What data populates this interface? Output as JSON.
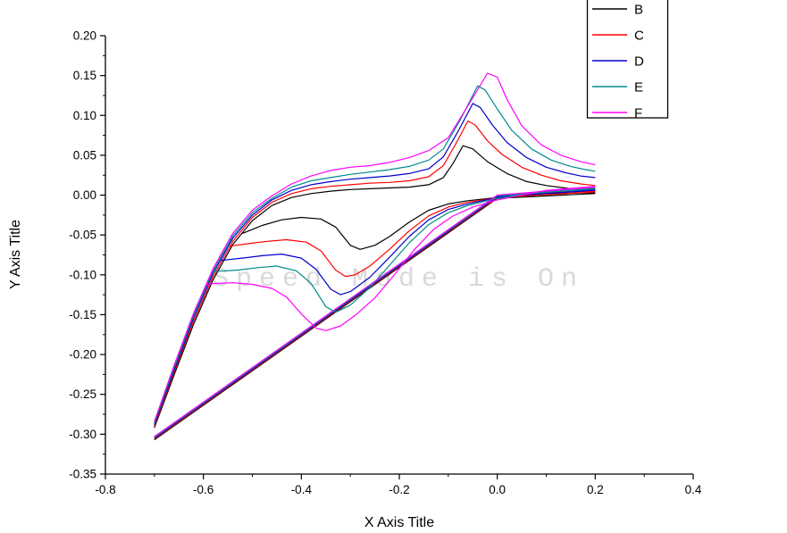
{
  "watermark": {
    "text": "Speed Mode is On",
    "color": "#d9d9d9"
  },
  "chart_data": {
    "type": "line",
    "title": "",
    "xlabel": "X Axis Title",
    "ylabel": "Y Axis Title",
    "xlim": [
      -0.8,
      0.4
    ],
    "ylim": [
      -0.35,
      0.2
    ],
    "x_ticks": [
      -0.8,
      -0.6,
      -0.4,
      -0.2,
      0.0,
      0.2,
      0.4
    ],
    "y_ticks": [
      0.2,
      0.15,
      0.1,
      0.05,
      0.0,
      -0.05,
      -0.1,
      -0.15,
      -0.2,
      -0.25,
      -0.3,
      -0.35
    ],
    "grid": false,
    "legend_position": "top-right",
    "series_note": "Cyclic-voltammetry-style loops: first_scan = straight diagonal sweep, anodic = upper branch with oxidation peak, cathodic = return branch with reduction trough",
    "series": [
      {
        "name": "B",
        "color": "#000000",
        "segments": {
          "first_scan": [
            [
              0.2,
              0.002
            ],
            [
              0.0,
              -0.004
            ],
            [
              -0.7,
              -0.307
            ]
          ],
          "anodic": [
            [
              -0.7,
              -0.292
            ],
            [
              -0.66,
              -0.226
            ],
            [
              -0.62,
              -0.162
            ],
            [
              -0.58,
              -0.106
            ],
            [
              -0.54,
              -0.062
            ],
            [
              -0.5,
              -0.032
            ],
            [
              -0.46,
              -0.013
            ],
            [
              -0.42,
              -0.003
            ],
            [
              -0.38,
              0.002
            ],
            [
              -0.34,
              0.005
            ],
            [
              -0.3,
              0.007
            ],
            [
              -0.26,
              0.008
            ],
            [
              -0.22,
              0.009
            ],
            [
              -0.18,
              0.01
            ],
            [
              -0.14,
              0.013
            ],
            [
              -0.11,
              0.022
            ],
            [
              -0.09,
              0.04
            ],
            [
              -0.07,
              0.062
            ],
            [
              -0.05,
              0.058
            ],
            [
              -0.02,
              0.042
            ],
            [
              0.02,
              0.027
            ],
            [
              0.06,
              0.017
            ],
            [
              0.1,
              0.012
            ],
            [
              0.15,
              0.008
            ],
            [
              0.2,
              0.006
            ]
          ],
          "cathodic": [
            [
              0.2,
              0.003
            ],
            [
              0.1,
              0.002
            ],
            [
              0.0,
              -0.003
            ],
            [
              -0.06,
              -0.007
            ],
            [
              -0.1,
              -0.011
            ],
            [
              -0.14,
              -0.019
            ],
            [
              -0.18,
              -0.034
            ],
            [
              -0.22,
              -0.052
            ],
            [
              -0.25,
              -0.063
            ],
            [
              -0.28,
              -0.068
            ],
            [
              -0.3,
              -0.063
            ],
            [
              -0.33,
              -0.04
            ],
            [
              -0.36,
              -0.03
            ],
            [
              -0.4,
              -0.028
            ],
            [
              -0.44,
              -0.031
            ],
            [
              -0.48,
              -0.038
            ],
            [
              -0.52,
              -0.048
            ]
          ]
        }
      },
      {
        "name": "C",
        "color": "#ff0000",
        "segments": {
          "first_scan": [
            [
              0.2,
              0.004
            ],
            [
              0.0,
              -0.003
            ],
            [
              -0.7,
              -0.306
            ]
          ],
          "anodic": [
            [
              -0.7,
              -0.29
            ],
            [
              -0.66,
              -0.223
            ],
            [
              -0.62,
              -0.158
            ],
            [
              -0.58,
              -0.102
            ],
            [
              -0.54,
              -0.058
            ],
            [
              -0.5,
              -0.028
            ],
            [
              -0.46,
              -0.009
            ],
            [
              -0.42,
              0.002
            ],
            [
              -0.38,
              0.008
            ],
            [
              -0.34,
              0.011
            ],
            [
              -0.3,
              0.013
            ],
            [
              -0.26,
              0.015
            ],
            [
              -0.22,
              0.016
            ],
            [
              -0.18,
              0.018
            ],
            [
              -0.14,
              0.023
            ],
            [
              -0.11,
              0.037
            ],
            [
              -0.085,
              0.064
            ],
            [
              -0.06,
              0.093
            ],
            [
              -0.045,
              0.088
            ],
            [
              -0.02,
              0.068
            ],
            [
              0.01,
              0.051
            ],
            [
              0.05,
              0.035
            ],
            [
              0.09,
              0.025
            ],
            [
              0.13,
              0.018
            ],
            [
              0.17,
              0.014
            ],
            [
              0.2,
              0.012
            ]
          ],
          "cathodic": [
            [
              0.2,
              0.005
            ],
            [
              0.1,
              0.003
            ],
            [
              0.0,
              -0.003
            ],
            [
              -0.06,
              -0.009
            ],
            [
              -0.1,
              -0.015
            ],
            [
              -0.14,
              -0.026
            ],
            [
              -0.18,
              -0.045
            ],
            [
              -0.22,
              -0.068
            ],
            [
              -0.26,
              -0.089
            ],
            [
              -0.29,
              -0.1
            ],
            [
              -0.31,
              -0.102
            ],
            [
              -0.33,
              -0.094
            ],
            [
              -0.36,
              -0.07
            ],
            [
              -0.39,
              -0.059
            ],
            [
              -0.43,
              -0.056
            ],
            [
              -0.47,
              -0.058
            ],
            [
              -0.51,
              -0.061
            ],
            [
              -0.545,
              -0.064
            ]
          ]
        }
      },
      {
        "name": "D",
        "color": "#0000cc",
        "segments": {
          "first_scan": [
            [
              0.2,
              0.006
            ],
            [
              0.0,
              -0.002
            ],
            [
              -0.7,
              -0.305
            ]
          ],
          "anodic": [
            [
              -0.7,
              -0.288
            ],
            [
              -0.66,
              -0.22
            ],
            [
              -0.62,
              -0.154
            ],
            [
              -0.58,
              -0.098
            ],
            [
              -0.54,
              -0.054
            ],
            [
              -0.5,
              -0.025
            ],
            [
              -0.46,
              -0.006
            ],
            [
              -0.42,
              0.006
            ],
            [
              -0.38,
              0.013
            ],
            [
              -0.34,
              0.017
            ],
            [
              -0.3,
              0.02
            ],
            [
              -0.26,
              0.022
            ],
            [
              -0.22,
              0.024
            ],
            [
              -0.18,
              0.027
            ],
            [
              -0.14,
              0.033
            ],
            [
              -0.11,
              0.048
            ],
            [
              -0.08,
              0.08
            ],
            [
              -0.05,
              0.115
            ],
            [
              -0.035,
              0.11
            ],
            [
              -0.01,
              0.088
            ],
            [
              0.02,
              0.066
            ],
            [
              0.06,
              0.047
            ],
            [
              0.1,
              0.035
            ],
            [
              0.14,
              0.028
            ],
            [
              0.17,
              0.024
            ],
            [
              0.2,
              0.022
            ]
          ],
          "cathodic": [
            [
              0.2,
              0.007
            ],
            [
              0.1,
              0.004
            ],
            [
              0.0,
              -0.003
            ],
            [
              -0.06,
              -0.011
            ],
            [
              -0.1,
              -0.018
            ],
            [
              -0.14,
              -0.031
            ],
            [
              -0.18,
              -0.052
            ],
            [
              -0.22,
              -0.078
            ],
            [
              -0.26,
              -0.103
            ],
            [
              -0.3,
              -0.121
            ],
            [
              -0.32,
              -0.125
            ],
            [
              -0.34,
              -0.118
            ],
            [
              -0.37,
              -0.093
            ],
            [
              -0.4,
              -0.079
            ],
            [
              -0.44,
              -0.074
            ],
            [
              -0.48,
              -0.076
            ],
            [
              -0.52,
              -0.079
            ],
            [
              -0.565,
              -0.082
            ]
          ]
        }
      },
      {
        "name": "E",
        "color": "#008b8b",
        "segments": {
          "first_scan": [
            [
              0.2,
              0.008
            ],
            [
              0.0,
              -0.001
            ],
            [
              -0.7,
              -0.304
            ]
          ],
          "anodic": [
            [
              -0.7,
              -0.286
            ],
            [
              -0.66,
              -0.217
            ],
            [
              -0.62,
              -0.151
            ],
            [
              -0.58,
              -0.095
            ],
            [
              -0.54,
              -0.051
            ],
            [
              -0.5,
              -0.022
            ],
            [
              -0.46,
              -0.004
            ],
            [
              -0.42,
              0.01
            ],
            [
              -0.38,
              0.018
            ],
            [
              -0.34,
              0.022
            ],
            [
              -0.3,
              0.026
            ],
            [
              -0.26,
              0.029
            ],
            [
              -0.22,
              0.032
            ],
            [
              -0.18,
              0.036
            ],
            [
              -0.14,
              0.044
            ],
            [
              -0.11,
              0.058
            ],
            [
              -0.075,
              0.095
            ],
            [
              -0.04,
              0.137
            ],
            [
              -0.025,
              0.132
            ],
            [
              0.0,
              0.108
            ],
            [
              0.03,
              0.081
            ],
            [
              0.07,
              0.058
            ],
            [
              0.11,
              0.044
            ],
            [
              0.15,
              0.036
            ],
            [
              0.18,
              0.032
            ],
            [
              0.2,
              0.03
            ]
          ],
          "cathodic": [
            [
              0.2,
              0.009
            ],
            [
              0.1,
              0.005
            ],
            [
              0.0,
              -0.004
            ],
            [
              -0.06,
              -0.013
            ],
            [
              -0.1,
              -0.022
            ],
            [
              -0.14,
              -0.037
            ],
            [
              -0.18,
              -0.06
            ],
            [
              -0.22,
              -0.088
            ],
            [
              -0.26,
              -0.116
            ],
            [
              -0.3,
              -0.138
            ],
            [
              -0.33,
              -0.147
            ],
            [
              -0.35,
              -0.14
            ],
            [
              -0.38,
              -0.111
            ],
            [
              -0.41,
              -0.095
            ],
            [
              -0.45,
              -0.089
            ],
            [
              -0.49,
              -0.091
            ],
            [
              -0.53,
              -0.094
            ],
            [
              -0.58,
              -0.096
            ]
          ]
        }
      },
      {
        "name": "F",
        "color": "#ff00ff",
        "segments": {
          "first_scan": [
            [
              0.2,
              0.01
            ],
            [
              0.0,
              0.0
            ],
            [
              -0.7,
              -0.303
            ]
          ],
          "anodic": [
            [
              -0.7,
              -0.284
            ],
            [
              -0.66,
              -0.214
            ],
            [
              -0.62,
              -0.148
            ],
            [
              -0.58,
              -0.092
            ],
            [
              -0.54,
              -0.048
            ],
            [
              -0.5,
              -0.019
            ],
            [
              -0.46,
              -0.001
            ],
            [
              -0.42,
              0.014
            ],
            [
              -0.38,
              0.024
            ],
            [
              -0.34,
              0.031
            ],
            [
              -0.3,
              0.035
            ],
            [
              -0.26,
              0.037
            ],
            [
              -0.22,
              0.041
            ],
            [
              -0.18,
              0.047
            ],
            [
              -0.14,
              0.056
            ],
            [
              -0.1,
              0.072
            ],
            [
              -0.06,
              0.112
            ],
            [
              -0.02,
              0.153
            ],
            [
              0.0,
              0.148
            ],
            [
              0.02,
              0.12
            ],
            [
              0.05,
              0.087
            ],
            [
              0.09,
              0.063
            ],
            [
              0.13,
              0.05
            ],
            [
              0.17,
              0.042
            ],
            [
              0.2,
              0.038
            ]
          ],
          "cathodic": [
            [
              0.2,
              0.011
            ],
            [
              0.1,
              0.006
            ],
            [
              0.0,
              -0.006
            ],
            [
              -0.05,
              -0.015
            ],
            [
              -0.09,
              -0.026
            ],
            [
              -0.13,
              -0.043
            ],
            [
              -0.17,
              -0.069
            ],
            [
              -0.21,
              -0.1
            ],
            [
              -0.25,
              -0.129
            ],
            [
              -0.29,
              -0.151
            ],
            [
              -0.32,
              -0.164
            ],
            [
              -0.35,
              -0.17
            ],
            [
              -0.37,
              -0.167
            ],
            [
              -0.4,
              -0.149
            ],
            [
              -0.43,
              -0.128
            ],
            [
              -0.46,
              -0.117
            ],
            [
              -0.5,
              -0.112
            ],
            [
              -0.54,
              -0.11
            ],
            [
              -0.58,
              -0.111
            ],
            [
              -0.595,
              -0.113
            ]
          ]
        }
      }
    ]
  }
}
